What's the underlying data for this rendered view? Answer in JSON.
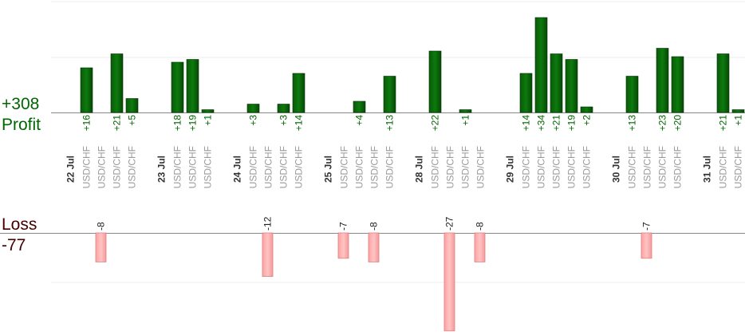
{
  "chart_data": {
    "type": "bar",
    "profit": {
      "total": "+308",
      "label": "Profit",
      "color": "#006600"
    },
    "loss": {
      "total": "-77",
      "label": "Loss",
      "color": "#440000",
      "bar_color": "#ffb0b0"
    },
    "groups": [
      {
        "date": "22 Jul",
        "trades": [
          {
            "pair": "USD/CHF",
            "value": 16,
            "label": "+16"
          },
          {
            "pair": "USD/CHF",
            "value": -8,
            "label": "-8"
          },
          {
            "pair": "USD/CHF",
            "value": 21,
            "label": "+21"
          },
          {
            "pair": "USD/CHF",
            "value": 5,
            "label": "+5"
          }
        ]
      },
      {
        "date": "23 Jul",
        "trades": [
          {
            "pair": "USD/CHF",
            "value": 18,
            "label": "+18"
          },
          {
            "pair": "USD/CHF",
            "value": 19,
            "label": "+19"
          },
          {
            "pair": "USD/CHF",
            "value": 1,
            "label": "+1"
          }
        ]
      },
      {
        "date": "24 Jul",
        "trades": [
          {
            "pair": "USD/CHF",
            "value": 3,
            "label": "+3"
          },
          {
            "pair": "USD/CHF",
            "value": -12,
            "label": "-12"
          },
          {
            "pair": "USD/CHF",
            "value": 3,
            "label": "+3"
          },
          {
            "pair": "USD/CHF",
            "value": 14,
            "label": "+14"
          }
        ]
      },
      {
        "date": "25 Jul",
        "trades": [
          {
            "pair": "USD/CHF",
            "value": -7,
            "label": "-7"
          },
          {
            "pair": "USD/CHF",
            "value": 4,
            "label": "+4"
          },
          {
            "pair": "USD/CHF",
            "value": -8,
            "label": "-8"
          },
          {
            "pair": "USD/CHF",
            "value": 13,
            "label": "+13"
          }
        ]
      },
      {
        "date": "28 Jul",
        "trades": [
          {
            "pair": "USD/CHF",
            "value": 22,
            "label": "+22"
          },
          {
            "pair": "USD/CHF",
            "value": -27,
            "label": "-27"
          },
          {
            "pair": "USD/CHF",
            "value": 1,
            "label": "+1"
          },
          {
            "pair": "USD/CHF",
            "value": -8,
            "label": "-8"
          }
        ]
      },
      {
        "date": "29 Jul",
        "trades": [
          {
            "pair": "USD/CHF",
            "value": 14,
            "label": "+14"
          },
          {
            "pair": "USD/CHF",
            "value": 34,
            "label": "+34"
          },
          {
            "pair": "USD/CHF",
            "value": 21,
            "label": "+21"
          },
          {
            "pair": "USD/CHF",
            "value": 19,
            "label": "+19"
          },
          {
            "pair": "USD/CHF",
            "value": 2,
            "label": "+2"
          }
        ]
      },
      {
        "date": "30 Jul",
        "trades": [
          {
            "pair": "USD/CHF",
            "value": 13,
            "label": "+13"
          },
          {
            "pair": "USD/CHF",
            "value": -7,
            "label": "-7"
          },
          {
            "pair": "USD/CHF",
            "value": 23,
            "label": "+23"
          },
          {
            "pair": "USD/CHF",
            "value": 20,
            "label": "+20"
          }
        ]
      },
      {
        "date": "31 Jul",
        "trades": [
          {
            "pair": "USD/CHF",
            "value": 21,
            "label": "+21"
          },
          {
            "pair": "USD/CHF",
            "value": 1,
            "label": "+1"
          }
        ]
      }
    ],
    "grid": true
  }
}
